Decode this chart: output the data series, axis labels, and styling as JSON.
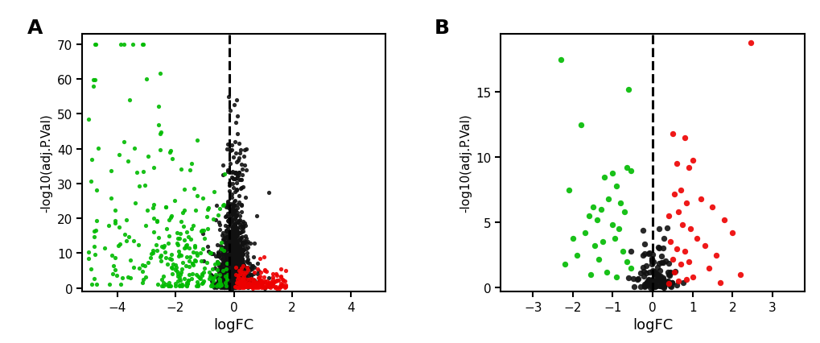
{
  "panel_A": {
    "title": "A",
    "xlabel": "logFC",
    "ylabel": "-log10(adj.P.Val)",
    "xlim": [
      -5.2,
      5.2
    ],
    "ylim": [
      -1,
      73
    ],
    "xticks": [
      -4,
      -2,
      0,
      2,
      4
    ],
    "yticks": [
      0,
      10,
      20,
      30,
      40,
      50,
      60,
      70
    ],
    "dashed_x": -0.15,
    "n_green": 293,
    "n_red": 161,
    "n_black": 1200,
    "seed": 42
  },
  "panel_B": {
    "title": "B",
    "xlabel": "logFC",
    "ylabel": "-log10(adj.P.Val)",
    "xlim": [
      -3.8,
      3.8
    ],
    "ylim": [
      -0.3,
      19.5
    ],
    "xticks": [
      -3,
      -2,
      -1,
      0,
      1,
      2,
      3
    ],
    "yticks": [
      0,
      5,
      10,
      15
    ],
    "dashed_x": 0.0,
    "n_green": 32,
    "n_red": 34,
    "n_black": 120,
    "seed": 99
  },
  "colors": {
    "green": "#00BB00",
    "red": "#EE0000",
    "black": "#111111",
    "background": "#FFFFFF"
  },
  "dot_size_A": 14,
  "dot_size_B": 28,
  "alpha_A": 0.9,
  "alpha_B": 0.9
}
